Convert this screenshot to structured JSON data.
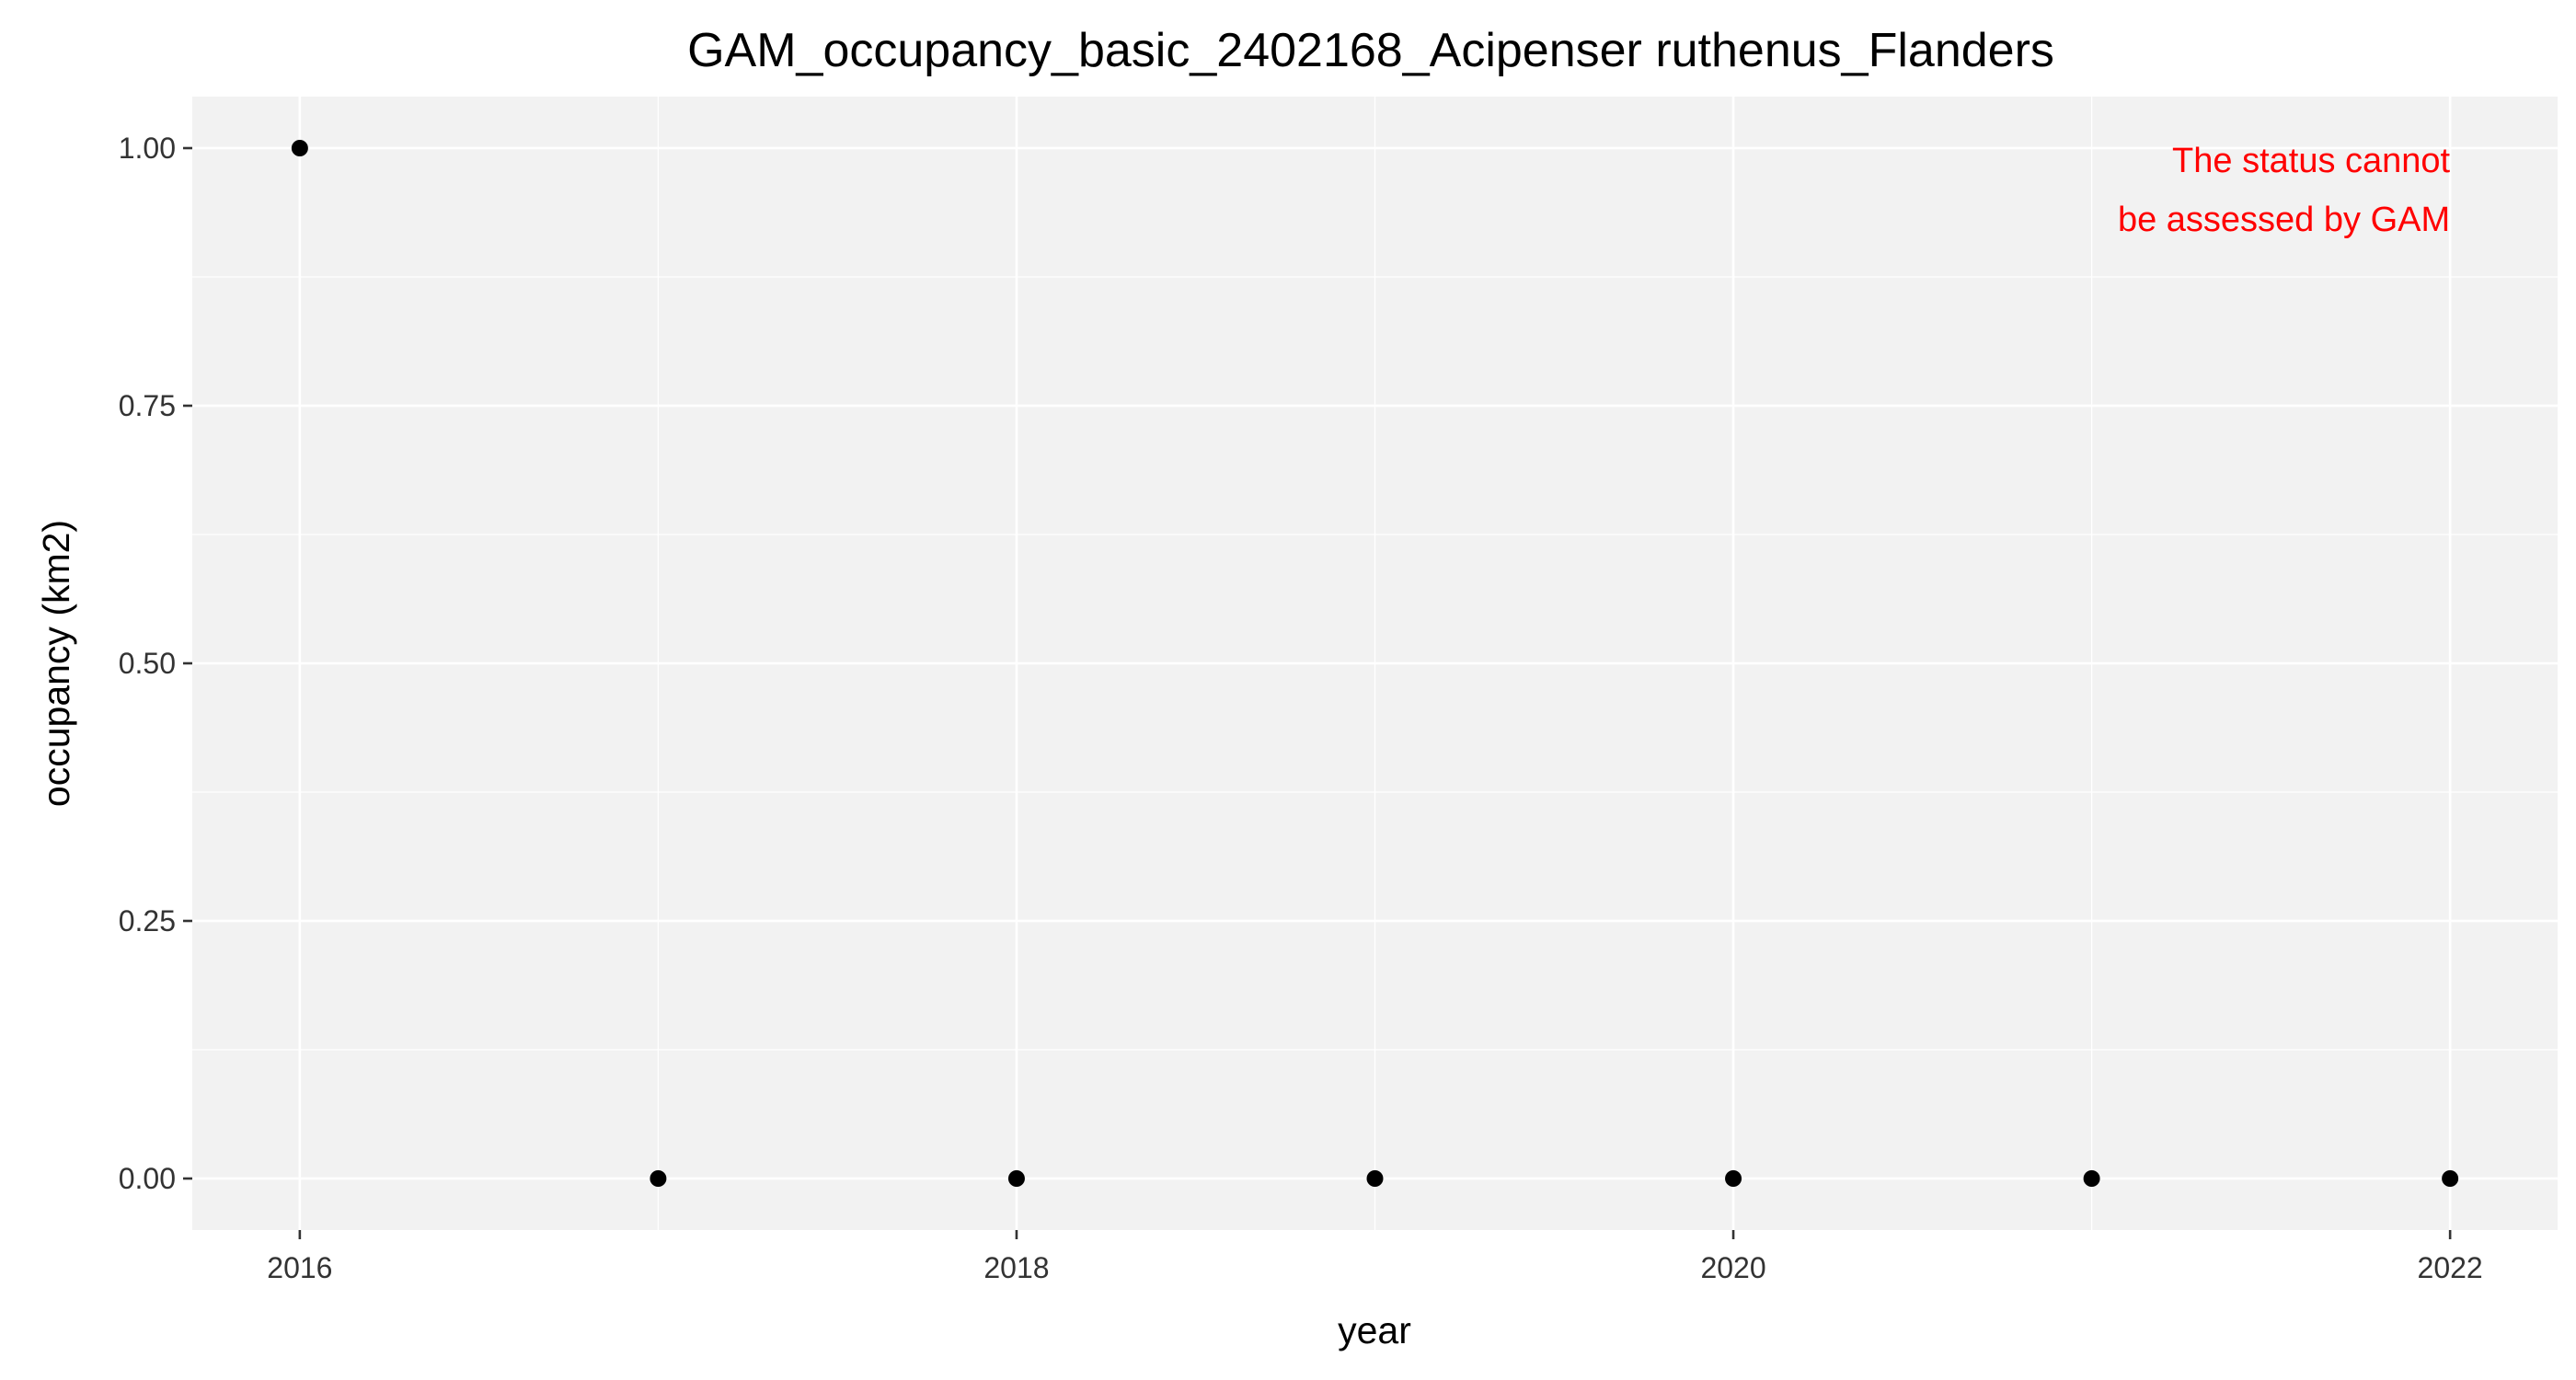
{
  "chart_data": {
    "type": "scatter",
    "title": "GAM_occupancy_basic_2402168_Acipenser ruthenus_Flanders",
    "xlabel": "year",
    "ylabel": "occupancy (km2)",
    "x": [
      2016,
      2017,
      2018,
      2019,
      2020,
      2021,
      2022
    ],
    "y": [
      1,
      0,
      0,
      0,
      0,
      0,
      0
    ],
    "xlim": [
      2015.7,
      2022.3
    ],
    "ylim": [
      -0.05,
      1.05
    ],
    "x_ticks": [
      2016,
      2018,
      2020,
      2022
    ],
    "x_tick_labels": [
      "2016",
      "2018",
      "2020",
      "2022"
    ],
    "y_ticks": [
      0,
      0.25,
      0.5,
      0.75,
      1
    ],
    "y_tick_labels": [
      "0.00",
      "0.25",
      "0.50",
      "0.75",
      "1.00"
    ],
    "annotation": {
      "lines": [
        "The status cannot",
        "be assessed by GAM"
      ],
      "color": "#ff0000",
      "position": "top-right"
    },
    "grid": true,
    "panel_color": "#f2f2f2",
    "point_color": "#000000"
  }
}
